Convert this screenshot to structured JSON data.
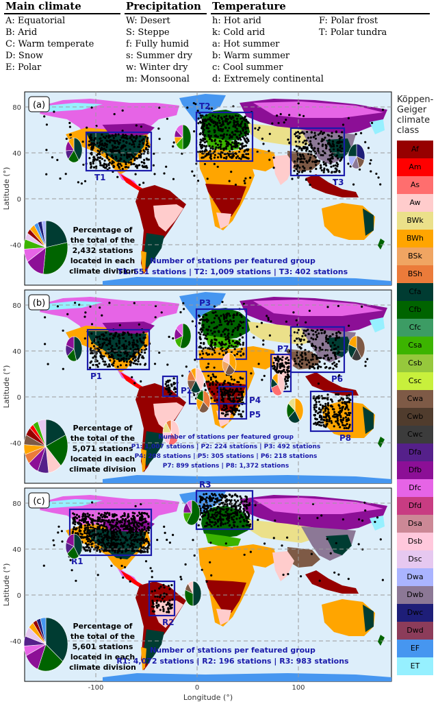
{
  "header": {
    "main_climate": {
      "title": "Main climate",
      "items": [
        "A: Equatorial",
        "B: Arid",
        "C: Warm temperate",
        "D: Snow",
        "E: Polar"
      ]
    },
    "precipitation": {
      "title": "Precipitation",
      "items": [
        "W: Desert",
        "S: Steppe",
        "f: Fully humid",
        "s: Summer dry",
        "w: Winter dry",
        "m: Monsoonal"
      ]
    },
    "temperature": {
      "title": "Temperature",
      "items": [
        "h: Hot arid",
        "k: Cold arid",
        "a: Hot summer",
        "b: Warm summer",
        "c: Cool summer",
        "d: Extremely continental"
      ]
    },
    "temperature2": {
      "items": [
        "F: Polar frost",
        "T: Polar tundra"
      ]
    }
  },
  "legend": {
    "title_lines": [
      "Köppen-",
      "Geiger",
      "climate",
      "class"
    ],
    "classes": [
      {
        "code": "Af",
        "color": "#960000"
      },
      {
        "code": "Am",
        "color": "#ff0000"
      },
      {
        "code": "As",
        "color": "#ff6e6e"
      },
      {
        "code": "Aw",
        "color": "#ffcccc"
      },
      {
        "code": "BWk",
        "color": "#ebe08a"
      },
      {
        "code": "BWh",
        "color": "#ffa500"
      },
      {
        "code": "BSk",
        "color": "#f0a562"
      },
      {
        "code": "BSh",
        "color": "#eb7b3a"
      },
      {
        "code": "Cfa",
        "color": "#003c32"
      },
      {
        "code": "Cfb",
        "color": "#006400"
      },
      {
        "code": "Cfc",
        "color": "#3c9c64"
      },
      {
        "code": "Csa",
        "color": "#3cb400"
      },
      {
        "code": "Csb",
        "color": "#96c83c"
      },
      {
        "code": "Csc",
        "color": "#c8f03c"
      },
      {
        "code": "Cwa",
        "color": "#7e5a46"
      },
      {
        "code": "Cwb",
        "color": "#503c2d"
      },
      {
        "code": "Cwc",
        "color": "#3c3c3c"
      },
      {
        "code": "Dfa",
        "color": "#55208a"
      },
      {
        "code": "Dfb",
        "color": "#8c0f96"
      },
      {
        "code": "Dfc",
        "color": "#e664e6"
      },
      {
        "code": "Dfd",
        "color": "#c83c82"
      },
      {
        "code": "Dsa",
        "color": "#cc8896"
      },
      {
        "code": "Dsb",
        "color": "#ffc8dc"
      },
      {
        "code": "Dsc",
        "color": "#e6c8f0"
      },
      {
        "code": "Dwa",
        "color": "#aab4ff"
      },
      {
        "code": "Dwb",
        "color": "#8c7896"
      },
      {
        "code": "Dwc",
        "color": "#1e1e78"
      },
      {
        "code": "Dwd",
        "color": "#8c3c5a"
      },
      {
        "code": "EF",
        "color": "#4696f0"
      },
      {
        "code": "ET",
        "color": "#96f0ff"
      }
    ]
  },
  "axes": {
    "ylabel": "Latitude (°)",
    "xlabel": "Longitude (°)",
    "yticks": [
      "80",
      "40",
      "0",
      "-40"
    ],
    "xticks": [
      "-100",
      "0",
      "100"
    ]
  },
  "panels": [
    {
      "label": "(a)",
      "pie_caption": [
        "Percentage of",
        "the total of the",
        "2,432 stations",
        "located in each",
        "climate division"
      ],
      "summary_title": "Number of stations per featured group",
      "summary_lines": [
        "T1: 551 stations | T2: 1,009 stations | T3: 402 stations"
      ],
      "boxes": [
        "T1",
        "T2",
        "T3"
      ]
    },
    {
      "label": "(b)",
      "pie_caption": [
        "Percentage of",
        "the total of the",
        "5,071 stations",
        "located in each",
        "climate division"
      ],
      "summary_title": "Number of stations per featured group",
      "summary_lines": [
        "P1: 1,007 stations | P2: 224 stations | P3: 492 stations",
        "P4: 208 stations | P5: 305 stations | P6: 218 stations",
        "P7: 899 stations | P8: 1,372 stations"
      ],
      "boxes": [
        "P1",
        "P2",
        "P3",
        "P4",
        "P5",
        "P6",
        "P7",
        "P8"
      ]
    },
    {
      "label": "(c)",
      "pie_caption": [
        "Percentage of",
        "the total of the",
        "5,601 stations",
        "located in each",
        "climate division"
      ],
      "summary_title": "Number of stations per featured group",
      "summary_lines": [
        "R1: 4,072 stations | R2: 196 stations | R3: 983 stations"
      ],
      "boxes": [
        "R1",
        "R2",
        "R3"
      ]
    }
  ]
}
